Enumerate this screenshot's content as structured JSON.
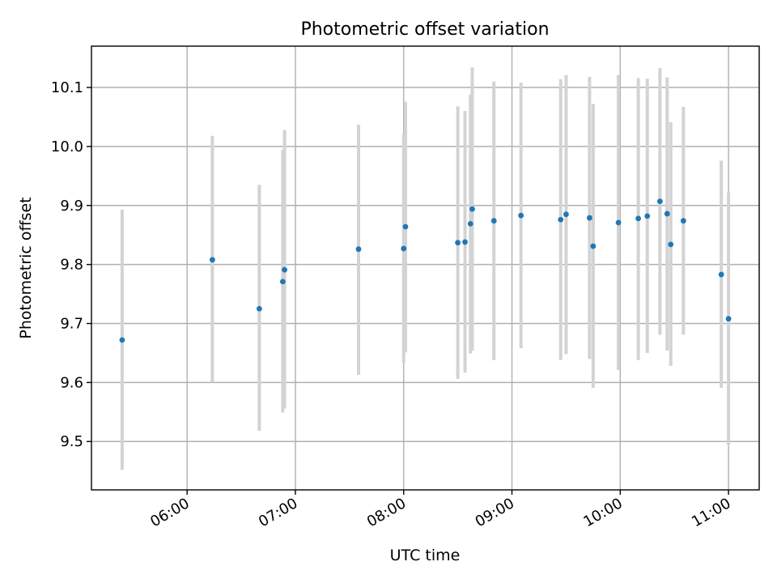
{
  "chart_data": {
    "type": "scatter",
    "title": "Photometric offset variation",
    "xlabel": "UTC time",
    "ylabel": "Photometric offset",
    "xlim": [
      "05:07",
      "11:17"
    ],
    "ylim": [
      9.418,
      10.17
    ],
    "x_ticks": [
      "06:00",
      "07:00",
      "08:00",
      "09:00",
      "10:00",
      "11:00"
    ],
    "y_ticks": [
      9.5,
      9.6,
      9.7,
      9.8,
      9.9,
      10.0,
      10.1
    ],
    "y_tick_labels": [
      "9.5",
      "9.6",
      "9.7",
      "9.8",
      "9.9",
      "10.0",
      "10.1"
    ],
    "grid": true,
    "colors": {
      "marker": "#1f77b4",
      "errorbar": "#d3d3d3"
    },
    "series": [
      {
        "points": [
          {
            "time": "05:24",
            "value": 9.672,
            "err_low": 9.452,
            "err_high": 9.893
          },
          {
            "time": "06:14",
            "value": 9.808,
            "err_low": 9.601,
            "err_high": 10.018
          },
          {
            "time": "06:40",
            "value": 9.725,
            "err_low": 9.518,
            "err_high": 9.935
          },
          {
            "time": "06:53",
            "value": 9.771,
            "err_low": 9.549,
            "err_high": 9.994
          },
          {
            "time": "06:54",
            "value": 9.791,
            "err_low": 9.556,
            "err_high": 10.028
          },
          {
            "time": "07:35",
            "value": 9.826,
            "err_low": 9.613,
            "err_high": 10.037
          },
          {
            "time": "08:00",
            "value": 9.827,
            "err_low": 9.633,
            "err_high": 10.021
          },
          {
            "time": "08:01",
            "value": 9.864,
            "err_low": 9.651,
            "err_high": 10.076
          },
          {
            "time": "08:30",
            "value": 9.837,
            "err_low": 9.606,
            "err_high": 10.068
          },
          {
            "time": "08:34",
            "value": 9.838,
            "err_low": 9.617,
            "err_high": 10.06
          },
          {
            "time": "08:37",
            "value": 9.869,
            "err_low": 9.649,
            "err_high": 10.088
          },
          {
            "time": "08:38",
            "value": 9.894,
            "err_low": 9.654,
            "err_high": 10.134
          },
          {
            "time": "08:50",
            "value": 9.874,
            "err_low": 9.638,
            "err_high": 10.11
          },
          {
            "time": "09:05",
            "value": 9.883,
            "err_low": 9.658,
            "err_high": 10.108
          },
          {
            "time": "09:27",
            "value": 9.876,
            "err_low": 9.638,
            "err_high": 10.114
          },
          {
            "time": "09:30",
            "value": 9.885,
            "err_low": 9.648,
            "err_high": 10.121
          },
          {
            "time": "09:43",
            "value": 9.879,
            "err_low": 9.64,
            "err_high": 10.118
          },
          {
            "time": "09:45",
            "value": 9.831,
            "err_low": 9.591,
            "err_high": 10.072
          },
          {
            "time": "09:59",
            "value": 9.871,
            "err_low": 9.621,
            "err_high": 10.121
          },
          {
            "time": "10:10",
            "value": 9.878,
            "err_low": 9.638,
            "err_high": 10.116
          },
          {
            "time": "10:15",
            "value": 9.882,
            "err_low": 9.65,
            "err_high": 10.115
          },
          {
            "time": "10:22",
            "value": 9.907,
            "err_low": 9.681,
            "err_high": 10.133
          },
          {
            "time": "10:26",
            "value": 9.886,
            "err_low": 9.654,
            "err_high": 10.117
          },
          {
            "time": "10:28",
            "value": 9.834,
            "err_low": 9.628,
            "err_high": 10.041
          },
          {
            "time": "10:35",
            "value": 9.874,
            "err_low": 9.681,
            "err_high": 10.067
          },
          {
            "time": "10:56",
            "value": 9.783,
            "err_low": 9.591,
            "err_high": 9.976
          },
          {
            "time": "11:00",
            "value": 9.708,
            "err_low": 9.494,
            "err_high": 9.922
          }
        ]
      }
    ]
  }
}
